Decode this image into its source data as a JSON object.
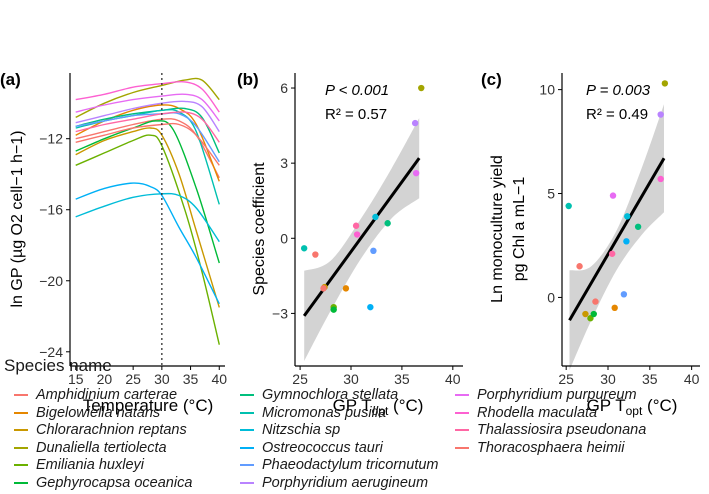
{
  "species": [
    {
      "name": "Amphidinium carterae",
      "color": "#F8766D"
    },
    {
      "name": "Bigelowiella natans",
      "color": "#E58700"
    },
    {
      "name": "Chlorarachnion reptans",
      "color": "#C99800"
    },
    {
      "name": "Dunaliella tertiolecta",
      "color": "#A3A500"
    },
    {
      "name": "Emiliania huxleyi",
      "color": "#6BB100"
    },
    {
      "name": "Gephyrocapsa oceanica",
      "color": "#00BA38"
    },
    {
      "name": "Gymnochlora stellata",
      "color": "#00BF7D"
    },
    {
      "name": "Micromonas pusilla",
      "color": "#00C0AF"
    },
    {
      "name": "Nitzschia sp",
      "color": "#00BCD8"
    },
    {
      "name": "Ostreococcus tauri",
      "color": "#00B0F6"
    },
    {
      "name": "Phaeodactylum tricornutum",
      "color": "#619CFF"
    },
    {
      "name": "Porphyridium aerugineum",
      "color": "#B983FF"
    },
    {
      "name": "Porphyridium purpureum",
      "color": "#E76BF3"
    },
    {
      "name": "Rhodella maculata",
      "color": "#FD61D1"
    },
    {
      "name": "Thalassiosira pseudonana",
      "color": "#FF67A4"
    },
    {
      "name": "Thoracosphaera heimii",
      "color": "#F8766D"
    }
  ],
  "legend": {
    "title": "Species name"
  },
  "chart_data": [
    {
      "panel_label": "(a)",
      "type": "line",
      "xlabel": "Temperature (°C)",
      "ylabel": "ln GP (µg O2 cell−1 h−1)",
      "xlim": [
        14,
        41
      ],
      "ylim": [
        -24.8,
        -8.3
      ],
      "xticks": [
        15,
        20,
        25,
        30,
        35,
        40
      ],
      "yticks": [
        -24,
        -20,
        -16,
        -12
      ],
      "vline": 30,
      "series": [
        {
          "name": "Amphidinium carterae",
          "x": [
            15,
            20,
            25,
            30,
            33,
            36,
            40
          ],
          "y": [
            -12.0,
            -11.6,
            -11.2,
            -10.9,
            -11.0,
            -11.8,
            -14.2
          ]
        },
        {
          "name": "Bigelowiella natans",
          "x": [
            15,
            20,
            25,
            30,
            33,
            36,
            40
          ],
          "y": [
            -11.8,
            -11.0,
            -10.4,
            -10.1,
            -10.3,
            -11.2,
            -14.4
          ]
        },
        {
          "name": "Chlorarachnion reptans",
          "x": [
            15,
            20,
            25,
            28,
            30,
            33,
            36,
            40
          ],
          "y": [
            -12.9,
            -12.1,
            -11.6,
            -11.4,
            -11.8,
            -14.0,
            -17.2,
            -21.5
          ]
        },
        {
          "name": "Dunaliella tertiolecta",
          "x": [
            15,
            20,
            25,
            30,
            34,
            37,
            40
          ],
          "y": [
            -10.8,
            -10.0,
            -9.4,
            -9.0,
            -8.7,
            -8.7,
            -9.8
          ]
        },
        {
          "name": "Emiliania huxleyi",
          "x": [
            15,
            20,
            25,
            28,
            30,
            34,
            37,
            40
          ],
          "y": [
            -13.5,
            -12.8,
            -12.1,
            -11.8,
            -12.4,
            -16.0,
            -19.5,
            -23.6
          ]
        },
        {
          "name": "Gephyrocapsa oceanica",
          "x": [
            15,
            20,
            25,
            29,
            32,
            36,
            40
          ],
          "y": [
            -12.7,
            -12.0,
            -11.4,
            -11.0,
            -11.5,
            -14.8,
            -19.0
          ]
        },
        {
          "name": "Gymnochlora stellata",
          "x": [
            15,
            20,
            25,
            30,
            34,
            37,
            40
          ],
          "y": [
            -11.3,
            -10.9,
            -10.6,
            -10.4,
            -10.3,
            -10.8,
            -12.8
          ]
        },
        {
          "name": "Micromonas pusilla",
          "x": [
            15,
            20,
            25,
            30,
            33,
            36,
            40
          ],
          "y": [
            -11.4,
            -11.0,
            -10.7,
            -10.4,
            -10.5,
            -11.6,
            -15.7
          ]
        },
        {
          "name": "Nitzschia sp",
          "x": [
            15,
            20,
            25,
            30,
            33,
            36,
            40
          ],
          "y": [
            -16.4,
            -15.8,
            -15.3,
            -15.1,
            -15.2,
            -15.9,
            -17.8
          ]
        },
        {
          "name": "Ostreococcus tauri",
          "x": [
            15,
            20,
            25,
            28,
            30,
            33,
            36,
            40
          ],
          "y": [
            -15.4,
            -14.8,
            -14.5,
            -14.7,
            -15.2,
            -17.0,
            -18.7,
            -21.3
          ]
        },
        {
          "name": "Phaeodactylum tricornutum",
          "x": [
            15,
            20,
            25,
            30,
            33,
            36,
            40
          ],
          "y": [
            -11.3,
            -11.0,
            -10.7,
            -10.6,
            -10.6,
            -11.3,
            -13.3
          ]
        },
        {
          "name": "Porphyridium aerugineum",
          "x": [
            15,
            20,
            25,
            30,
            34,
            37,
            40
          ],
          "y": [
            -11.1,
            -10.7,
            -10.3,
            -10.0,
            -9.9,
            -10.2,
            -11.6
          ]
        },
        {
          "name": "Porphyridium purpureum",
          "x": [
            15,
            20,
            25,
            30,
            34,
            37,
            40
          ],
          "y": [
            -10.5,
            -10.1,
            -9.8,
            -9.6,
            -9.5,
            -9.8,
            -11.0
          ]
        },
        {
          "name": "Rhodella maculata",
          "x": [
            15,
            20,
            25,
            30,
            34,
            37,
            40
          ],
          "y": [
            -9.8,
            -9.5,
            -9.1,
            -8.9,
            -8.8,
            -9.2,
            -10.5
          ]
        },
        {
          "name": "Thalassiosira pseudonana",
          "x": [
            15,
            20,
            25,
            30,
            34,
            37,
            40
          ],
          "y": [
            -11.6,
            -11.2,
            -10.9,
            -10.6,
            -10.5,
            -10.9,
            -12.2
          ]
        },
        {
          "name": "Thoracosphaera heimii",
          "x": [
            15,
            20,
            25,
            30,
            33,
            36,
            40
          ],
          "y": [
            -12.2,
            -11.8,
            -11.4,
            -11.2,
            -11.2,
            -11.8,
            -13.5
          ]
        }
      ]
    },
    {
      "panel_label": "(b)",
      "type": "scatter",
      "xlabel": "GP T",
      "xlabel_sub": "opt",
      "xlabel_unit": " (°C)",
      "ylabel": "Species coefficient",
      "xlim": [
        24.5,
        41
      ],
      "ylim": [
        -5.1,
        6.6
      ],
      "xticks": [
        25,
        30,
        35,
        40
      ],
      "yticks": [
        -3,
        0,
        3,
        6
      ],
      "stat_p": "P < 0.001",
      "stat_r2": "R² = 0.57",
      "fit_line": {
        "x": [
          25.4,
          36.7
        ],
        "y": [
          -3.1,
          3.2
        ]
      },
      "ci_band": {
        "x": [
          25.4,
          28,
          31,
          34,
          36.7
        ],
        "lower": [
          -4.9,
          -2.9,
          -0.8,
          0.8,
          1.6
        ],
        "upper": [
          -1.3,
          -0.9,
          0.8,
          2.8,
          4.8
        ]
      },
      "points": [
        {
          "species": "Amphidinium carterae",
          "x": 26.5,
          "y": -0.65
        },
        {
          "species": "Bigelowiella natans",
          "x": 29.5,
          "y": -2.0
        },
        {
          "species": "Chlorarachnion reptans",
          "x": 27.4,
          "y": -1.95
        },
        {
          "species": "Dunaliella tertiolecta",
          "x": 36.9,
          "y": 6.0
        },
        {
          "species": "Emiliania huxleyi",
          "x": 28.3,
          "y": -2.75
        },
        {
          "species": "Gephyrocapsa oceanica",
          "x": 28.3,
          "y": -2.85
        },
        {
          "species": "Gymnochlora stellata",
          "x": 33.6,
          "y": 0.6
        },
        {
          "species": "Micromonas pusilla",
          "x": 25.4,
          "y": -0.4
        },
        {
          "species": "Nitzschia sp",
          "x": 32.4,
          "y": 0.85
        },
        {
          "species": "Ostreococcus tauri",
          "x": 31.9,
          "y": -2.75
        },
        {
          "species": "Phaeodactylum tricornutum",
          "x": 32.2,
          "y": -0.5
        },
        {
          "species": "Porphyridium aerugineum",
          "x": 36.3,
          "y": 4.6
        },
        {
          "species": "Porphyridium purpureum",
          "x": 36.4,
          "y": 2.6
        },
        {
          "species": "Rhodella maculata",
          "x": 30.6,
          "y": 0.15
        },
        {
          "species": "Thalassiosira pseudonana",
          "x": 30.5,
          "y": 0.5
        },
        {
          "species": "Thoracosphaera heimii",
          "x": 27.3,
          "y": -2.0
        }
      ]
    },
    {
      "panel_label": "(c)",
      "type": "scatter",
      "xlabel": "GP T",
      "xlabel_sub": "opt",
      "xlabel_unit": " (°C)",
      "ylabel_line1": "Ln monoculture yield",
      "ylabel_line2": "pg Chl a mL−1",
      "xlim": [
        24.5,
        41
      ],
      "ylim": [
        -3.3,
        10.8
      ],
      "xticks": [
        25,
        30,
        35,
        40
      ],
      "yticks": [
        0,
        5,
        10
      ],
      "stat_p": "P = 0.003",
      "stat_r2": "R² = 0.49",
      "fit_line": {
        "x": [
          25.4,
          36.7
        ],
        "y": [
          -1.1,
          6.7
        ]
      },
      "ci_band": {
        "x": [
          25.4,
          28,
          31,
          34,
          36.7
        ],
        "lower": [
          -3.5,
          -1.1,
          1.3,
          3.0,
          4.1
        ],
        "upper": [
          1.3,
          1.5,
          3.2,
          6.2,
          9.3
        ]
      },
      "points": [
        {
          "species": "Amphidinium carterae",
          "x": 26.6,
          "y": 1.5
        },
        {
          "species": "Bigelowiella natans",
          "x": 30.8,
          "y": -0.5
        },
        {
          "species": "Chlorarachnion reptans",
          "x": 27.3,
          "y": -0.8
        },
        {
          "species": "Dunaliella tertiolecta",
          "x": 36.8,
          "y": 10.3
        },
        {
          "species": "Emiliania huxleyi",
          "x": 27.9,
          "y": -1.0
        },
        {
          "species": "Gephyrocapsa oceanica",
          "x": 28.3,
          "y": -0.8
        },
        {
          "species": "Gymnochlora stellata",
          "x": 33.6,
          "y": 3.4
        },
        {
          "species": "Micromonas pusilla",
          "x": 25.3,
          "y": 4.4
        },
        {
          "species": "Nitzschia sp",
          "x": 32.3,
          "y": 3.9
        },
        {
          "species": "Ostreococcus tauri",
          "x": 32.2,
          "y": 2.7
        },
        {
          "species": "Phaeodactylum tricornutum",
          "x": 31.9,
          "y": 0.15
        },
        {
          "species": "Porphyridium aerugineum",
          "x": 36.3,
          "y": 8.8
        },
        {
          "species": "Porphyridium purpureum",
          "x": 30.6,
          "y": 4.9
        },
        {
          "species": "Rhodella maculata",
          "x": 36.3,
          "y": 5.7
        },
        {
          "species": "Thalassiosira pseudonana",
          "x": 30.5,
          "y": 2.1
        },
        {
          "species": "Thoracosphaera heimii",
          "x": 28.5,
          "y": -0.2
        }
      ]
    }
  ]
}
